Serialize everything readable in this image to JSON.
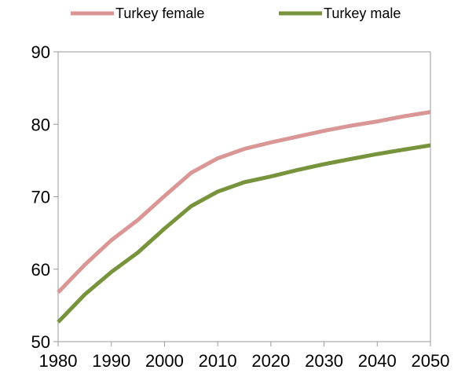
{
  "chart_data": {
    "type": "line",
    "title": "",
    "xlabel": "",
    "ylabel": "",
    "x": [
      1980,
      1985,
      1990,
      1995,
      2000,
      2005,
      2010,
      2015,
      2020,
      2025,
      2030,
      2035,
      2040,
      2045,
      2050
    ],
    "xticks": [
      "1980",
      "1990",
      "2000",
      "2010",
      "2020",
      "2030",
      "2040",
      "2050"
    ],
    "xlim": [
      1980,
      2050
    ],
    "ylim": [
      50,
      90
    ],
    "yticks": [
      "50",
      "60",
      "70",
      "80",
      "90"
    ],
    "grid": false,
    "legend_position": "top",
    "series": [
      {
        "name": "Turkey female",
        "color": "#d99694",
        "values": [
          56.8,
          60.6,
          64.0,
          66.8,
          70.1,
          73.3,
          75.3,
          76.6,
          77.5,
          78.3,
          79.1,
          79.8,
          80.4,
          81.1,
          81.7
        ]
      },
      {
        "name": "Turkey male",
        "color": "#77933c",
        "values": [
          52.7,
          56.5,
          59.6,
          62.3,
          65.6,
          68.7,
          70.7,
          72.0,
          72.8,
          73.7,
          74.5,
          75.2,
          75.9,
          76.5,
          77.1
        ]
      }
    ]
  }
}
